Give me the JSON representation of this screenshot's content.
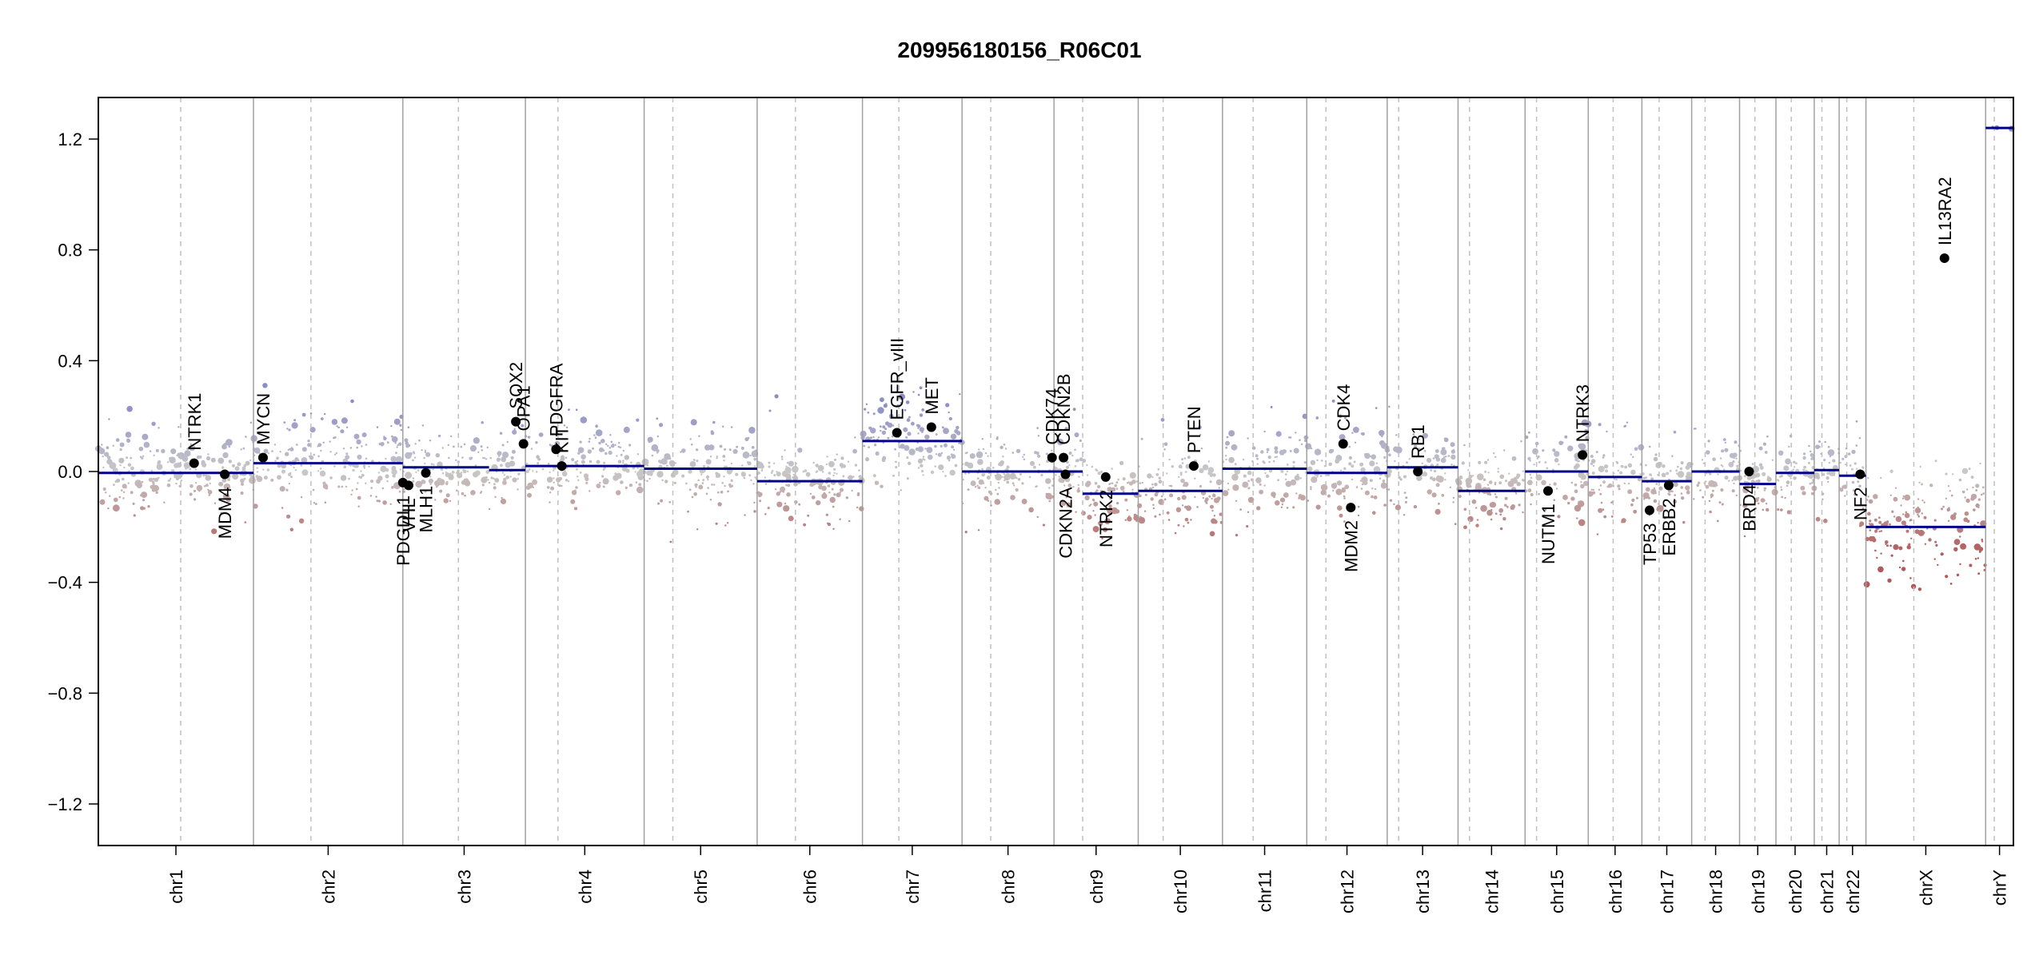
{
  "chart_data": {
    "type": "scatter",
    "title": "209956180156_R06C01",
    "xlabel": "",
    "ylabel": "",
    "ylim": [
      -1.35,
      1.35
    ],
    "y_ticks": [
      -1.2,
      -0.8,
      -0.4,
      0.0,
      0.4,
      0.8,
      1.2
    ],
    "y_tick_labels": [
      "−1.2",
      "−0.8",
      "−0.4",
      "0.0",
      "0.4",
      "0.8",
      "1.2"
    ],
    "chromosomes": [
      {
        "name": "chr1",
        "span": [
          0.0,
          0.081
        ],
        "arm_split": 0.043
      },
      {
        "name": "chr2",
        "span": [
          0.081,
          0.159
        ],
        "arm_split": 0.111
      },
      {
        "name": "chr3",
        "span": [
          0.159,
          0.223
        ],
        "arm_split": 0.188
      },
      {
        "name": "chr4",
        "span": [
          0.223,
          0.285
        ],
        "arm_split": 0.24
      },
      {
        "name": "chr5",
        "span": [
          0.285,
          0.344
        ],
        "arm_split": 0.3
      },
      {
        "name": "chr6",
        "span": [
          0.344,
          0.399
        ],
        "arm_split": 0.364
      },
      {
        "name": "chr7",
        "span": [
          0.399,
          0.451
        ],
        "arm_split": 0.418
      },
      {
        "name": "chr8",
        "span": [
          0.451,
          0.499
        ],
        "arm_split": 0.466
      },
      {
        "name": "chr9",
        "span": [
          0.499,
          0.543
        ],
        "arm_split": 0.514
      },
      {
        "name": "chr10",
        "span": [
          0.543,
          0.587
        ],
        "arm_split": 0.556
      },
      {
        "name": "chr11",
        "span": [
          0.587,
          0.631
        ],
        "arm_split": 0.603
      },
      {
        "name": "chr12",
        "span": [
          0.631,
          0.673
        ],
        "arm_split": 0.641
      },
      {
        "name": "chr13",
        "span": [
          0.673,
          0.71
        ],
        "arm_split": 0.679
      },
      {
        "name": "chr14",
        "span": [
          0.71,
          0.745
        ],
        "arm_split": 0.716
      },
      {
        "name": "chr15",
        "span": [
          0.745,
          0.778
        ],
        "arm_split": 0.751
      },
      {
        "name": "chr16",
        "span": [
          0.778,
          0.806
        ],
        "arm_split": 0.791
      },
      {
        "name": "chr17",
        "span": [
          0.806,
          0.832
        ],
        "arm_split": 0.815
      },
      {
        "name": "chr18",
        "span": [
          0.832,
          0.857
        ],
        "arm_split": 0.839
      },
      {
        "name": "chr19",
        "span": [
          0.857,
          0.876
        ],
        "arm_split": 0.865
      },
      {
        "name": "chr20",
        "span": [
          0.876,
          0.896
        ],
        "arm_split": 0.884
      },
      {
        "name": "chr21",
        "span": [
          0.896,
          0.909
        ],
        "arm_split": 0.9
      },
      {
        "name": "chr22",
        "span": [
          0.909,
          0.923
        ],
        "arm_split": 0.913
      },
      {
        "name": "chrX",
        "span": [
          0.923,
          0.9855
        ],
        "arm_split": 0.948
      },
      {
        "name": "chrY",
        "span": [
          0.9855,
          1.0
        ],
        "arm_split": 0.99
      }
    ],
    "segments": [
      {
        "chr": "chr1",
        "span": [
          0.0,
          0.081
        ],
        "value": -0.005
      },
      {
        "chr": "chr2",
        "span": [
          0.081,
          0.159
        ],
        "value": 0.03
      },
      {
        "chr": "chr3",
        "span": [
          0.159,
          0.204
        ],
        "value": 0.015
      },
      {
        "chr": "chr3",
        "span": [
          0.204,
          0.223
        ],
        "value": 0.005
      },
      {
        "chr": "chr4",
        "span": [
          0.223,
          0.285
        ],
        "value": 0.02
      },
      {
        "chr": "chr5",
        "span": [
          0.285,
          0.344
        ],
        "value": 0.01
      },
      {
        "chr": "chr6",
        "span": [
          0.344,
          0.399
        ],
        "value": -0.035
      },
      {
        "chr": "chr7",
        "span": [
          0.399,
          0.451
        ],
        "value": 0.11
      },
      {
        "chr": "chr8",
        "span": [
          0.451,
          0.499
        ],
        "value": 0.0
      },
      {
        "chr": "chr9",
        "span": [
          0.499,
          0.514
        ],
        "value": 0.0
      },
      {
        "chr": "chr9",
        "span": [
          0.514,
          0.543
        ],
        "value": -0.08
      },
      {
        "chr": "chr10",
        "span": [
          0.543,
          0.587
        ],
        "value": -0.07
      },
      {
        "chr": "chr11",
        "span": [
          0.587,
          0.631
        ],
        "value": 0.01
      },
      {
        "chr": "chr12",
        "span": [
          0.631,
          0.673
        ],
        "value": -0.005
      },
      {
        "chr": "chr13",
        "span": [
          0.673,
          0.71
        ],
        "value": 0.015
      },
      {
        "chr": "chr14",
        "span": [
          0.71,
          0.745
        ],
        "value": -0.07
      },
      {
        "chr": "chr15",
        "span": [
          0.745,
          0.778
        ],
        "value": 0.0
      },
      {
        "chr": "chr16",
        "span": [
          0.778,
          0.806
        ],
        "value": -0.02
      },
      {
        "chr": "chr17",
        "span": [
          0.806,
          0.832
        ],
        "value": -0.035
      },
      {
        "chr": "chr18",
        "span": [
          0.832,
          0.857
        ],
        "value": 0.0
      },
      {
        "chr": "chr19",
        "span": [
          0.857,
          0.876
        ],
        "value": -0.045
      },
      {
        "chr": "chr20",
        "span": [
          0.876,
          0.896
        ],
        "value": -0.005
      },
      {
        "chr": "chr21",
        "span": [
          0.896,
          0.909
        ],
        "value": 0.005
      },
      {
        "chr": "chr22",
        "span": [
          0.909,
          0.923
        ],
        "value": -0.015
      },
      {
        "chr": "chrX",
        "span": [
          0.923,
          0.9855
        ],
        "value": -0.2
      },
      {
        "chr": "chrY",
        "span": [
          0.9855,
          1.0
        ],
        "value": 1.24
      }
    ],
    "genes": [
      {
        "name": "NTRK1",
        "pos": 0.05,
        "value": 0.03,
        "label_side": "above"
      },
      {
        "name": "MDM4",
        "pos": 0.066,
        "value": -0.01,
        "label_side": "below"
      },
      {
        "name": "MYCN",
        "pos": 0.086,
        "value": 0.05,
        "label_side": "above"
      },
      {
        "name": "PDGDL1",
        "pos": 0.159,
        "value": -0.04,
        "label_side": "below"
      },
      {
        "name": "VHL",
        "pos": 0.162,
        "value": -0.05,
        "label_side": "below"
      },
      {
        "name": "MLH1",
        "pos": 0.171,
        "value": -0.005,
        "label_side": "below"
      },
      {
        "name": "SOX2",
        "pos": 0.218,
        "value": 0.18,
        "label_side": "above"
      },
      {
        "name": "OPA1",
        "pos": 0.222,
        "value": 0.1,
        "label_side": "above"
      },
      {
        "name": "PDGFRA",
        "pos": 0.239,
        "value": 0.08,
        "label_side": "above"
      },
      {
        "name": "KIT",
        "pos": 0.242,
        "value": 0.02,
        "label_side": "above"
      },
      {
        "name": "EGFR_vIII",
        "pos": 0.417,
        "value": 0.14,
        "label_side": "above"
      },
      {
        "name": "MET",
        "pos": 0.435,
        "value": 0.16,
        "label_side": "above"
      },
      {
        "name": "CDK74",
        "pos": 0.498,
        "value": 0.05,
        "label_side": "above"
      },
      {
        "name": "CDKN2B",
        "pos": 0.504,
        "value": 0.05,
        "label_side": "above"
      },
      {
        "name": "CDKN2A",
        "pos": 0.505,
        "value": -0.01,
        "label_side": "below"
      },
      {
        "name": "NTRK2",
        "pos": 0.526,
        "value": -0.02,
        "label_side": "below"
      },
      {
        "name": "PTEN",
        "pos": 0.572,
        "value": 0.02,
        "label_side": "above"
      },
      {
        "name": "CDK4",
        "pos": 0.65,
        "value": 0.1,
        "label_side": "above"
      },
      {
        "name": "MDM2",
        "pos": 0.654,
        "value": -0.13,
        "label_side": "below"
      },
      {
        "name": "RB1",
        "pos": 0.689,
        "value": 0.0,
        "label_side": "above"
      },
      {
        "name": "NUTM1",
        "pos": 0.757,
        "value": -0.07,
        "label_side": "below"
      },
      {
        "name": "NTRK3",
        "pos": 0.775,
        "value": 0.06,
        "label_side": "above"
      },
      {
        "name": "TP53",
        "pos": 0.81,
        "value": -0.14,
        "label_side": "below"
      },
      {
        "name": "ERBB2",
        "pos": 0.82,
        "value": -0.05,
        "label_side": "below"
      },
      {
        "name": "BRD4",
        "pos": 0.862,
        "value": 0.0,
        "label_side": "below"
      },
      {
        "name": "NF2",
        "pos": 0.92,
        "value": -0.01,
        "label_side": "below"
      },
      {
        "name": "IL13RA2",
        "pos": 0.964,
        "value": 0.77,
        "label_side": "above"
      }
    ],
    "colors": {
      "segment": "#00008b",
      "gain": "#8c8cc8",
      "loss": "#b25a5a",
      "neutral": "#c8c8c8",
      "gene_point": "#000000",
      "chr_border": "#a0a0a0",
      "arm_split": "#c0c0c0",
      "axes": "#000000"
    }
  }
}
